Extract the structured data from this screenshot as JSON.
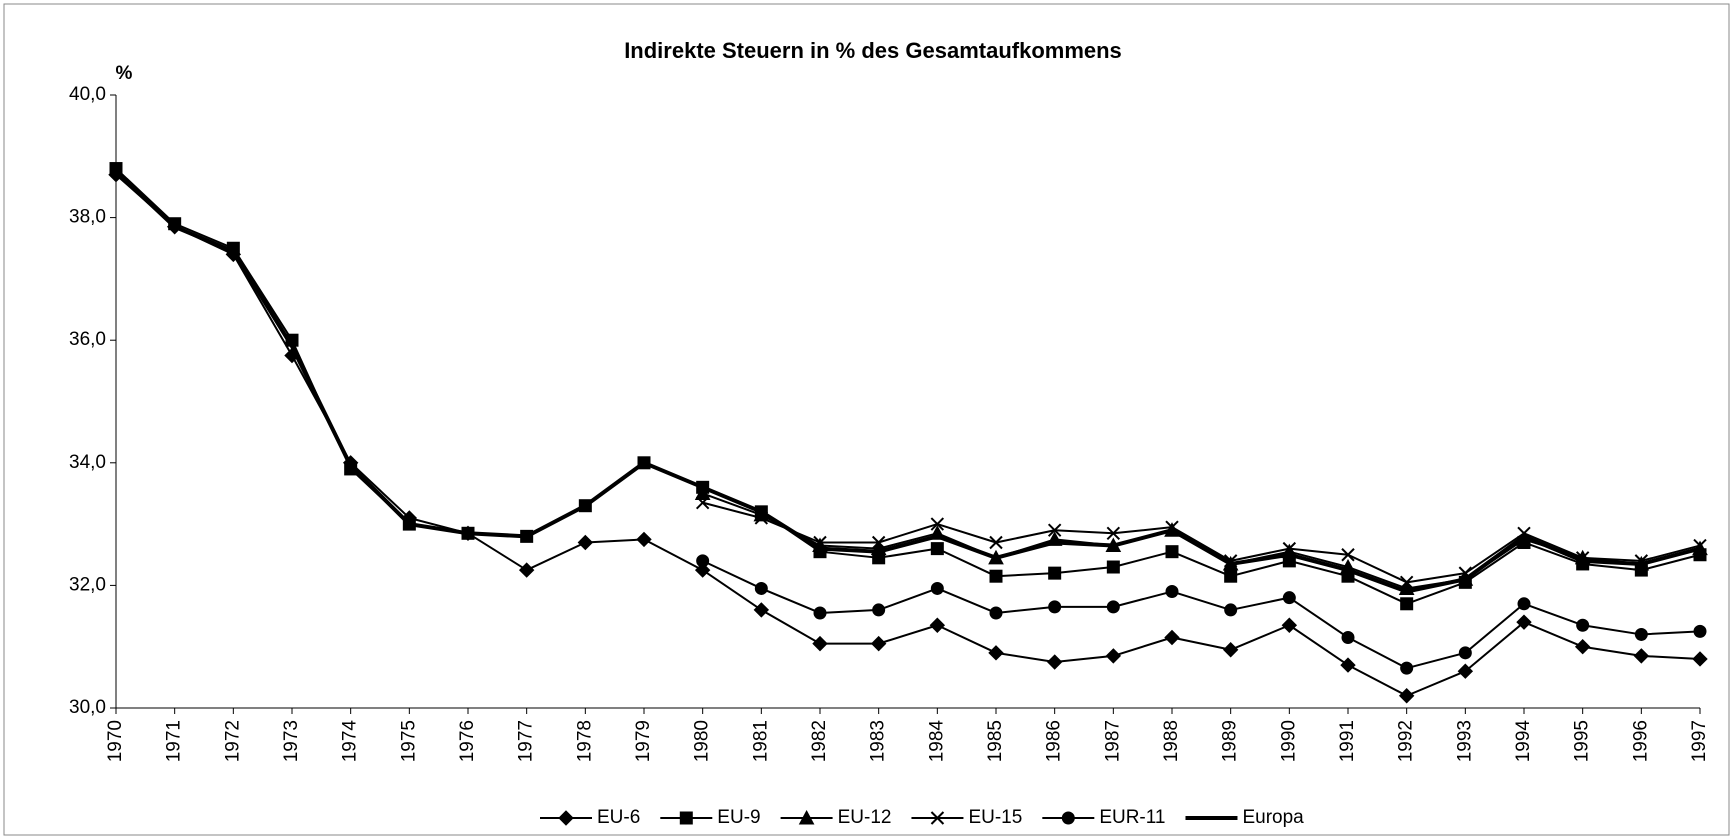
{
  "chart_data": {
    "type": "line",
    "title": "Indirekte Steuern in % des Gesamtaufkommens",
    "y_label": "%",
    "categories": [
      "1970",
      "1971",
      "1972",
      "1973",
      "1974",
      "1975",
      "1976",
      "1977",
      "1978",
      "1979",
      "1980",
      "1981",
      "1982",
      "1983",
      "1984",
      "1985",
      "1986",
      "1987",
      "1988",
      "1989",
      "1990",
      "1991",
      "1992",
      "1993",
      "1994",
      "1995",
      "1996",
      "1997"
    ],
    "ylim": [
      30,
      40
    ],
    "yticks": [
      {
        "value": 30,
        "label": "30,0"
      },
      {
        "value": 32,
        "label": "32,0"
      },
      {
        "value": 34,
        "label": "34,0"
      },
      {
        "value": 36,
        "label": "36,0"
      },
      {
        "value": 38,
        "label": "38,0"
      },
      {
        "value": 40,
        "label": "40,0"
      }
    ],
    "legend": "bottom",
    "series": [
      {
        "name": "EU-6",
        "color": "#000000",
        "marker": "diamond",
        "values": [
          38.7,
          37.85,
          37.4,
          35.75,
          34.0,
          33.1,
          32.85,
          32.25,
          32.7,
          32.75,
          32.25,
          31.6,
          31.05,
          31.05,
          31.35,
          30.9,
          30.75,
          30.85,
          31.15,
          30.95,
          31.35,
          30.7,
          30.2,
          30.6,
          31.4,
          31.0,
          30.85,
          30.8
        ]
      },
      {
        "name": "EU-9",
        "color": "#000000",
        "marker": "square",
        "values": [
          38.8,
          37.9,
          37.5,
          36.0,
          33.9,
          33.0,
          32.85,
          32.8,
          33.3,
          34.0,
          33.6,
          33.2,
          32.55,
          32.45,
          32.6,
          32.15,
          32.2,
          32.3,
          32.55,
          32.15,
          32.4,
          32.15,
          31.7,
          32.05,
          32.7,
          32.35,
          32.25,
          32.5
        ]
      },
      {
        "name": "EU-12",
        "color": "#000000",
        "marker": "triangle",
        "values": [
          null,
          null,
          null,
          null,
          null,
          null,
          null,
          null,
          null,
          null,
          33.5,
          33.15,
          32.65,
          32.6,
          32.85,
          32.45,
          32.75,
          32.65,
          32.9,
          32.35,
          32.55,
          32.3,
          31.95,
          32.1,
          32.75,
          32.45,
          32.35,
          32.6
        ]
      },
      {
        "name": "EU-15",
        "color": "#000000",
        "marker": "x",
        "values": [
          null,
          null,
          null,
          null,
          null,
          null,
          null,
          null,
          null,
          null,
          33.35,
          33.1,
          32.7,
          32.7,
          33.0,
          32.7,
          32.9,
          32.85,
          32.95,
          32.4,
          32.6,
          32.5,
          32.05,
          32.2,
          32.85,
          32.45,
          32.4,
          32.65
        ]
      },
      {
        "name": "EUR-11",
        "color": "#000000",
        "marker": "circle",
        "values": [
          null,
          null,
          null,
          null,
          null,
          null,
          null,
          null,
          null,
          null,
          32.4,
          31.95,
          31.55,
          31.6,
          31.95,
          31.55,
          31.65,
          31.65,
          31.9,
          31.6,
          31.8,
          31.15,
          30.65,
          30.9,
          31.7,
          31.35,
          31.2,
          31.25
        ]
      },
      {
        "name": "Europa",
        "color": "#000000",
        "marker": "none",
        "linewidth": 4,
        "values": [
          38.75,
          37.85,
          37.45,
          35.9,
          33.95,
          33.0,
          32.85,
          32.8,
          33.3,
          34.0,
          33.6,
          33.2,
          32.6,
          32.55,
          32.8,
          32.45,
          32.7,
          32.65,
          32.9,
          32.35,
          32.5,
          32.25,
          31.9,
          32.1,
          32.8,
          32.4,
          32.35,
          32.6
        ]
      }
    ]
  }
}
